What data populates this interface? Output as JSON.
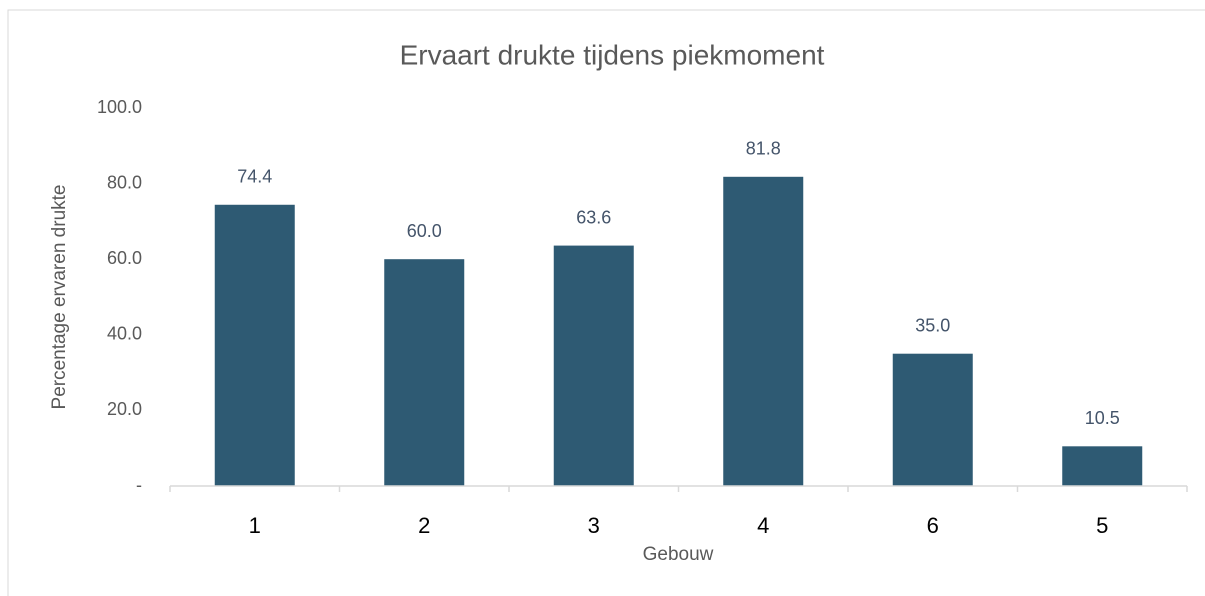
{
  "chart_data": {
    "type": "bar",
    "title": "Ervaart drukte tijdens piekmoment",
    "x_label": "Gebouw",
    "y_label": "Percentage ervaren drukte",
    "categories": [
      "1",
      "2",
      "3",
      "4",
      "6",
      "5"
    ],
    "values": [
      74.4,
      60,
      63.6,
      81.8,
      35,
      10.5
    ],
    "value_labels": [
      "74.4",
      "60.0",
      "63.6",
      "81.8",
      "35.0",
      "10.5"
    ],
    "color": "#2e5a73",
    "ylim": [
      0,
      100
    ],
    "yticks": [
      {
        "value": 100,
        "label": "100.0"
      },
      {
        "value": 80,
        "label": "80.0"
      },
      {
        "value": 60,
        "label": "60.0"
      },
      {
        "value": 40,
        "label": "40.0"
      },
      {
        "value": 20,
        "label": "20.0"
      },
      {
        "value": 0,
        "label": "-"
      }
    ],
    "grid": false
  }
}
